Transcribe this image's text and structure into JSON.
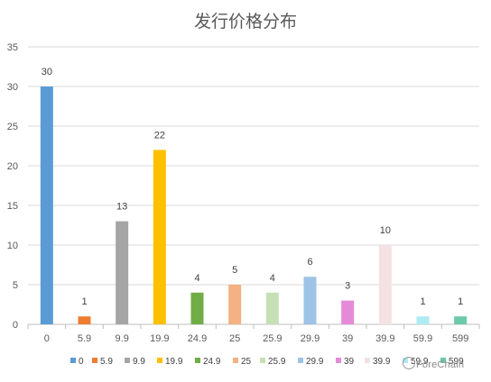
{
  "chart_data": {
    "type": "bar",
    "title": "发行价格分布",
    "categories": [
      "0",
      "5.9",
      "9.9",
      "19.9",
      "24.9",
      "25",
      "25.9",
      "29.9",
      "39",
      "39.9",
      "59.9",
      "599"
    ],
    "values": [
      30,
      1,
      13,
      22,
      4,
      5,
      4,
      6,
      3,
      10,
      1,
      1
    ],
    "colors": [
      "#5b9bd5",
      "#ed7d31",
      "#a5a5a5",
      "#ffc000",
      "#70ad47",
      "#f4b183",
      "#c5e0b4",
      "#9dc3e6",
      "#e58ad8",
      "#f4e2e2",
      "#aeeaf2",
      "#6ccaa8"
    ],
    "ylim": [
      0,
      35
    ],
    "yticks": [
      0,
      5,
      10,
      15,
      20,
      25,
      30,
      35
    ],
    "grid": true,
    "legend": "bottom",
    "data_labels": true
  },
  "watermark": {
    "text": "ForeChain",
    "icon": "circle-logo-icon"
  }
}
